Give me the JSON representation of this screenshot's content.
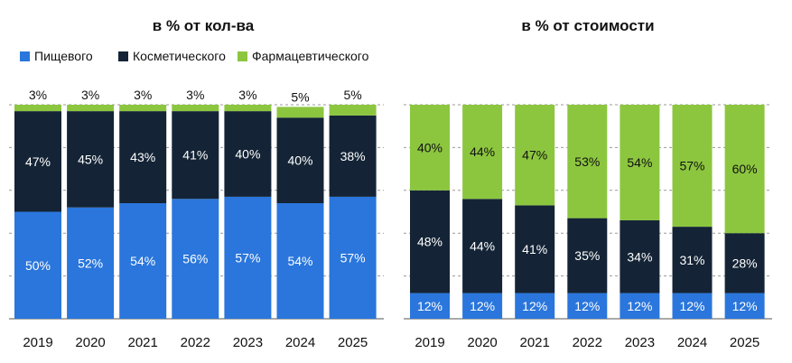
{
  "colors": {
    "food": "#2a76dc",
    "cosmetic": "#142436",
    "pharma": "#8cc63f",
    "grid": "#9a9a9a",
    "text": "#111111",
    "label_light": "#ffffff",
    "label_dark": "#111111"
  },
  "chart_data": [
    {
      "type": "bar",
      "stacked": true,
      "title": "в % от кол-ва",
      "legend": [
        "Пищевого",
        "Косметического",
        "Фармацевтического"
      ],
      "legend_position": "top",
      "categories": [
        "2019",
        "2020",
        "2021",
        "2022",
        "2023",
        "2024",
        "2025"
      ],
      "ylim": [
        0,
        100
      ],
      "grid": true,
      "series": [
        {
          "name": "Пищевого",
          "values": [
            50,
            52,
            54,
            56,
            57,
            54,
            57
          ],
          "labels": [
            "50%",
            "52%",
            "54%",
            "56%",
            "57%",
            "54%",
            "57%"
          ]
        },
        {
          "name": "Косметического",
          "values": [
            47,
            45,
            43,
            41,
            40,
            40,
            38
          ],
          "labels": [
            "47%",
            "45%",
            "43%",
            "41%",
            "40%",
            "40%",
            "38%"
          ]
        },
        {
          "name": "Фармацевтического",
          "values": [
            3,
            3,
            3,
            3,
            3,
            5,
            5
          ],
          "labels": [
            "3%",
            "3%",
            "3%",
            "3%",
            "3%",
            "5%",
            "5%"
          ]
        }
      ]
    },
    {
      "type": "bar",
      "stacked": true,
      "title": "в % от стоимости",
      "categories": [
        "2019",
        "2020",
        "2021",
        "2022",
        "2023",
        "2024",
        "2025"
      ],
      "ylim": [
        0,
        100
      ],
      "grid": true,
      "series": [
        {
          "name": "Пищевого",
          "values": [
            12,
            12,
            12,
            12,
            12,
            12,
            12
          ],
          "labels": [
            "12%",
            "12%",
            "12%",
            "12%",
            "12%",
            "12%",
            "12%"
          ]
        },
        {
          "name": "Косметического",
          "values": [
            48,
            44,
            41,
            35,
            34,
            31,
            28
          ],
          "labels": [
            "48%",
            "44%",
            "41%",
            "35%",
            "34%",
            "31%",
            "28%"
          ]
        },
        {
          "name": "Фармацевтического",
          "values": [
            40,
            44,
            47,
            53,
            54,
            57,
            60
          ],
          "labels": [
            "40%",
            "44%",
            "47%",
            "53%",
            "54%",
            "57%",
            "60%"
          ]
        }
      ]
    }
  ]
}
